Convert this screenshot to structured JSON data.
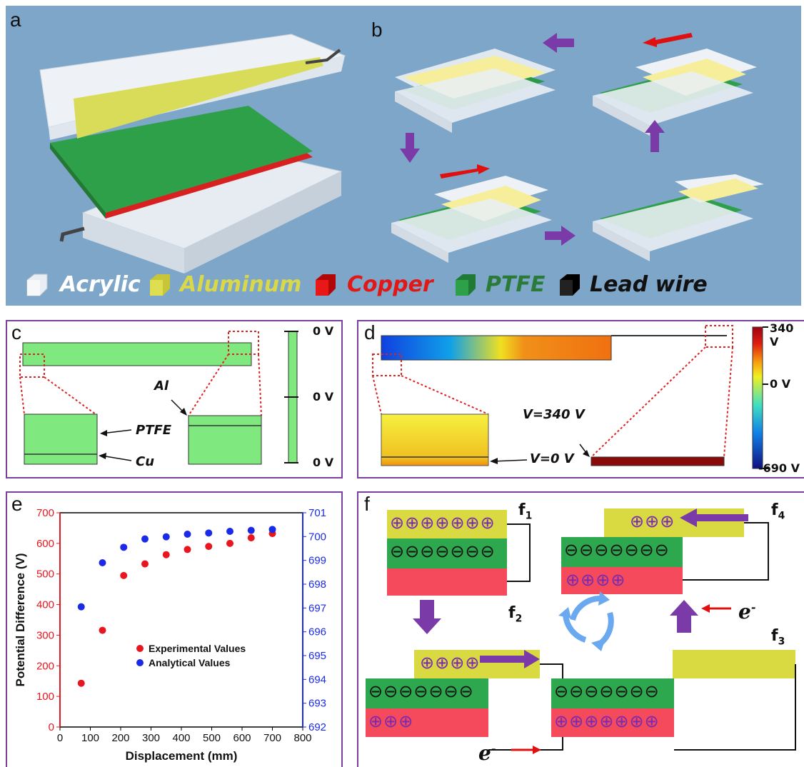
{
  "panels": {
    "a": "a",
    "b": "b",
    "c": "c",
    "d": "d",
    "e": "e",
    "f": "f"
  },
  "legend": [
    {
      "label": "Acrylic",
      "color": "#ffffff",
      "cube": "#e8eef3"
    },
    {
      "label": "Aluminum",
      "color": "#d8d84a",
      "cube": "#d6d640"
    },
    {
      "label": "Copper",
      "color": "#e01818",
      "cube": "#e01010"
    },
    {
      "label": "PTFE",
      "color": "#2a7a3a",
      "cube": "#2a9a48"
    },
    {
      "label": "Lead wire",
      "color": "#111111",
      "cube": "#111111"
    }
  ],
  "panel_c": {
    "al": "Al",
    "ptfe": "PTFE",
    "cu": "Cu",
    "scale_top": "0 V",
    "scale_mid": "0 V",
    "scale_bot": "0 V"
  },
  "panel_d": {
    "scale_top": "340 V",
    "scale_mid": "0 V",
    "scale_bot": "-690 V",
    "v_top": "V=340 V",
    "v_bot": "V=0 V"
  },
  "panel_f": {
    "f1": "f",
    "f1_sub": "1",
    "f2": "f",
    "f2_sub": "2",
    "f3": "f",
    "f3_sub": "3",
    "f4": "f",
    "f4_sub": "4",
    "e": "e",
    "e_sup": "-",
    "plus_f1": "⊕⊕⊕⊕⊕⊕⊕",
    "minus_f1": "⊖⊖⊖⊖⊖⊖⊖",
    "plus_f2_top": "⊕⊕⊕⊕",
    "minus_f2": "⊖⊖⊖⊖⊖⊖⊖",
    "plus_f2_bot": "⊕⊕⊕",
    "minus_f3": "⊖⊖⊖⊖⊖⊖⊖",
    "plus_f3_bot": "⊕⊕⊕⊕⊕⊕⊕",
    "plus_f4_top": "⊕⊕⊕",
    "minus_f4": "⊖⊖⊖⊖⊖⊖⊖",
    "plus_f4_bot": "⊕⊕⊕⊕"
  },
  "chart_data": {
    "type": "scatter",
    "xlabel": "Displacement (mm)",
    "ylabel": "Potential Difference (V)",
    "xlim": [
      0,
      800
    ],
    "ylim": [
      0,
      700
    ],
    "y2lim": [
      692,
      701
    ],
    "xticks": [
      "0",
      "100",
      "200",
      "300",
      "400",
      "500",
      "600",
      "700",
      "800"
    ],
    "yticks": [
      "0",
      "100",
      "200",
      "300",
      "400",
      "500",
      "600",
      "700"
    ],
    "y2ticks": [
      "692",
      "693",
      "694",
      "695",
      "696",
      "697",
      "698",
      "699",
      "700",
      "701"
    ],
    "legend_position": "center-right",
    "series": [
      {
        "name": "Experimental Values",
        "color": "#e8171f",
        "axis": "left",
        "x": [
          70,
          140,
          210,
          280,
          350,
          420,
          490,
          560,
          630,
          700
        ],
        "y": [
          143,
          316,
          495,
          533,
          563,
          580,
          590,
          600,
          618,
          632
        ]
      },
      {
        "name": "Analytical Values",
        "color": "#1a2ae6",
        "axis": "right",
        "x": [
          70,
          140,
          210,
          280,
          350,
          420,
          490,
          560,
          630,
          700
        ],
        "y": [
          697.05,
          698.9,
          699.55,
          699.9,
          699.99,
          700.1,
          700.15,
          700.22,
          700.26,
          700.3
        ]
      }
    ]
  }
}
